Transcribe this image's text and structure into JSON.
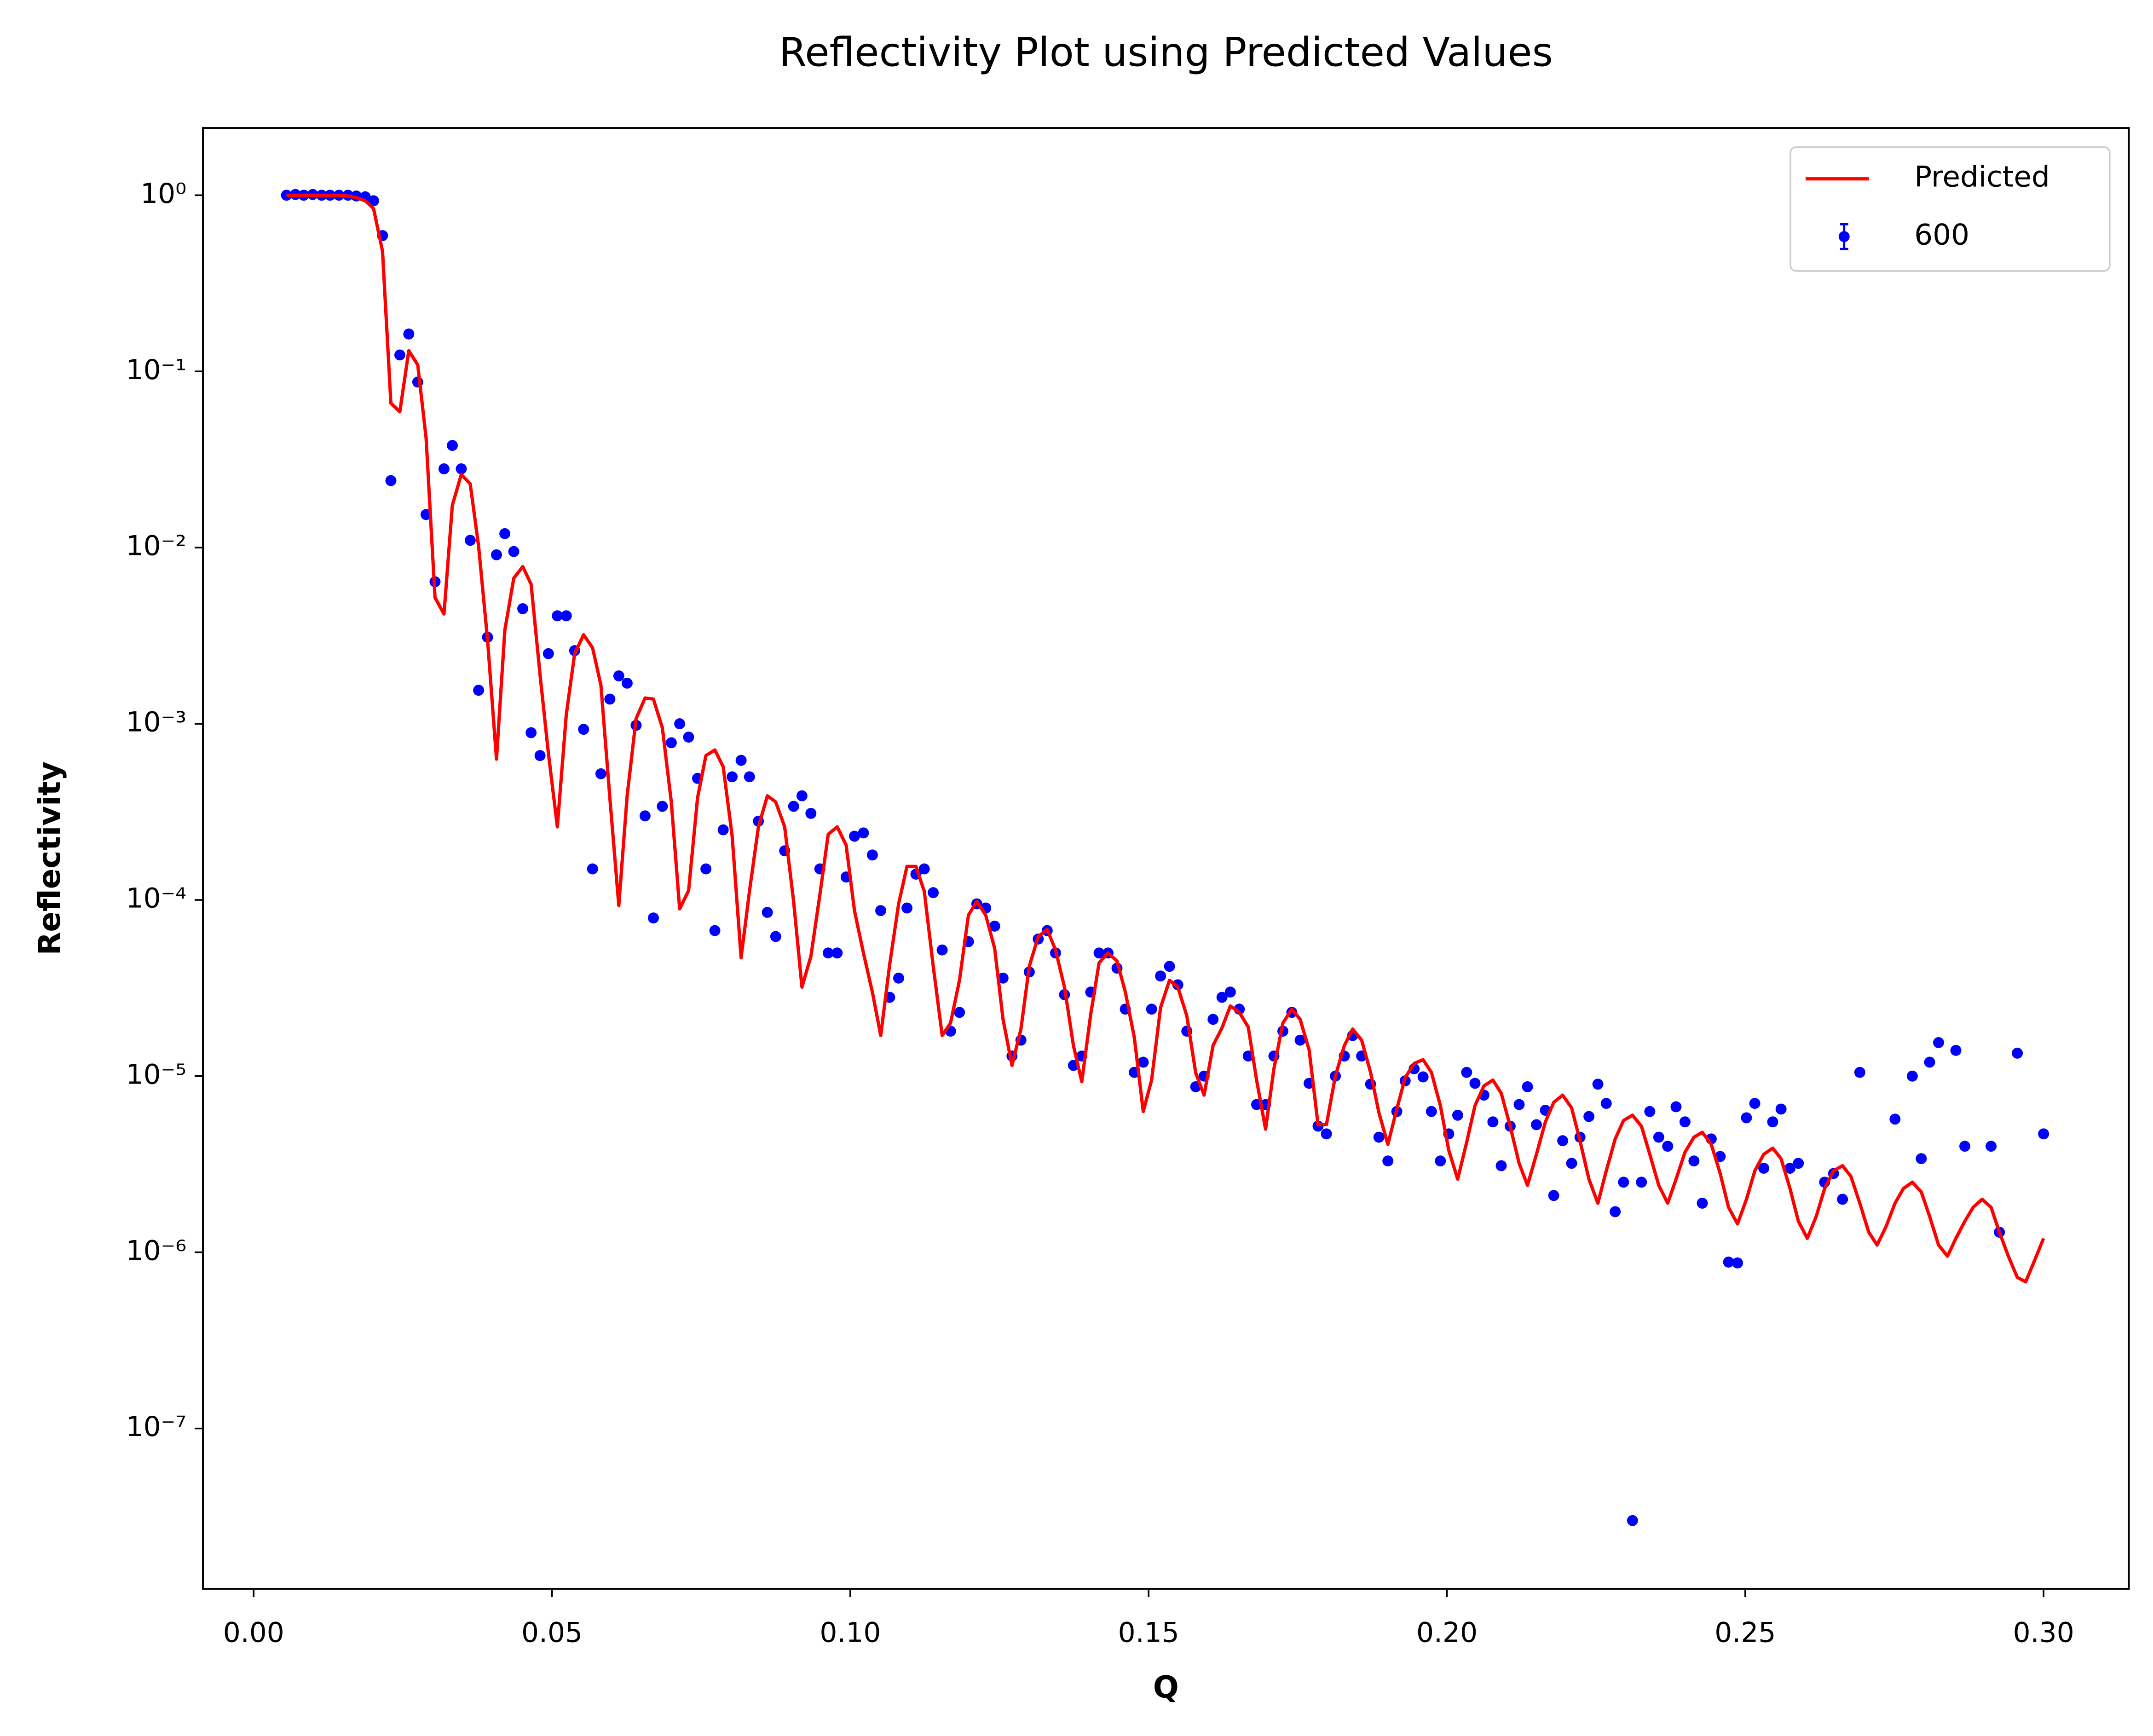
{
  "chart_data": {
    "type": "line-scatter",
    "title": "Reflectivity Plot using Predicted Values",
    "x_label": "Q",
    "y_label": "Reflectivity",
    "y_log": true,
    "legend": "upper right",
    "xlim": [
      -0.0085,
      0.3143
    ],
    "ylim": [
      1.23e-08,
      2.41
    ],
    "xticks": [
      {
        "value": 0,
        "label": "0.00"
      },
      0.05,
      {
        "value": 0.1,
        "label": "0.10"
      },
      0.15,
      {
        "value": 0.2,
        "label": "0.20"
      },
      0.25,
      {
        "value": 0.3,
        "label": "0.30"
      }
    ],
    "yticks": [
      {
        "value": 1,
        "label": "10⁰"
      },
      {
        "value": 0.1,
        "label": "10⁻¹"
      },
      {
        "value": 0.01,
        "label": "10⁻²"
      },
      {
        "value": 0.001,
        "label": "10⁻³"
      },
      {
        "value": 0.0001,
        "label": "10⁻⁴"
      },
      {
        "value": 1e-05,
        "label": "10⁻⁵"
      },
      {
        "value": 1e-06,
        "label": "10⁻⁶"
      },
      {
        "value": 1e-07,
        "label": "10⁻⁷"
      }
    ],
    "x": [
      0.0055,
      0.007,
      0.0084,
      0.0099,
      0.0114,
      0.0128,
      0.0143,
      0.0158,
      0.0172,
      0.0187,
      0.0201,
      0.0216,
      0.023,
      0.0245,
      0.026,
      0.0275,
      0.0289,
      0.0304,
      0.0319,
      0.0333,
      0.0348,
      0.0363,
      0.0377,
      0.0392,
      0.0407,
      0.0421,
      0.0436,
      0.0451,
      0.0465,
      0.048,
      0.0494,
      0.0509,
      0.0524,
      0.0538,
      0.0553,
      0.0568,
      0.0582,
      0.0597,
      0.0612,
      0.0626,
      0.0641,
      0.0656,
      0.067,
      0.0685,
      0.07,
      0.0714,
      0.0729,
      0.0744,
      0.0758,
      0.0773,
      0.0787,
      0.0802,
      0.0817,
      0.0831,
      0.0846,
      0.0861,
      0.0875,
      0.089,
      0.0905,
      0.0919,
      0.0934,
      0.0949,
      0.0963,
      0.0978,
      0.0993,
      0.1007,
      0.1022,
      0.1037,
      0.1051,
      0.1066,
      0.1081,
      0.1095,
      0.111,
      0.1124,
      0.1139,
      0.1154,
      0.1168,
      0.1183,
      0.1198,
      0.1212,
      0.1227,
      0.1242,
      0.1256,
      0.1271,
      0.1286,
      0.13,
      0.1315,
      0.133,
      0.1344,
      0.1359,
      0.1374,
      0.1388,
      0.1403,
      0.1417,
      0.1432,
      0.1447,
      0.1461,
      0.1476,
      0.1491,
      0.1505,
      0.152,
      0.1535,
      0.1549,
      0.1564,
      0.1579,
      0.1593,
      0.1608,
      0.1623,
      0.1637,
      0.1652,
      0.1667,
      0.1681,
      0.1696,
      0.171,
      0.1725,
      0.174,
      0.1754,
      0.1769,
      0.1784,
      0.1798,
      0.1813,
      0.1828,
      0.1842,
      0.1857,
      0.1872,
      0.1886,
      0.1901,
      0.1916,
      0.193,
      0.1945,
      0.196,
      0.1974,
      0.1989,
      0.2003,
      0.2018,
      0.2033,
      0.2047,
      0.2062,
      0.2077,
      0.2091,
      0.2106,
      0.2121,
      0.2135,
      0.215,
      0.2165,
      0.2179,
      0.2194,
      0.2209,
      0.2223,
      0.2238,
      0.2253,
      0.2267,
      0.2282,
      0.2296,
      0.2311,
      0.2326,
      0.234,
      0.2355,
      0.237,
      0.2384,
      0.2399,
      0.2414,
      0.2428,
      0.2443,
      0.2458,
      0.2472,
      0.2487,
      0.2502,
      0.2516,
      0.2531,
      0.2546,
      0.256,
      0.2575,
      0.2589,
      0.2604,
      0.2619,
      0.2633,
      0.2648,
      0.2663,
      0.2677,
      0.2692,
      0.2707,
      0.2721,
      0.2736,
      0.2751,
      0.2765,
      0.278,
      0.2795,
      0.2809,
      0.2824,
      0.2839,
      0.2853,
      0.2868,
      0.2882,
      0.2897,
      0.2912,
      0.2926,
      0.2941,
      0.2956,
      0.297,
      0.2985,
      0.3
    ],
    "series": [
      {
        "name": "Predicted",
        "color": "#ff0000",
        "mark": "line",
        "values": [
          1.0,
          1.0,
          1.0,
          1.0,
          1.0,
          1.0,
          1.0,
          0.99,
          0.97,
          0.93,
          0.84,
          0.48,
          0.066,
          0.059,
          0.131,
          0.109,
          0.042,
          0.0052,
          0.0042,
          0.0174,
          0.026,
          0.023,
          0.0102,
          0.003,
          0.00063,
          0.0034,
          0.0067,
          0.0078,
          0.0062,
          0.0019,
          0.00068,
          0.00026,
          0.00113,
          0.0025,
          0.0032,
          0.0027,
          0.00166,
          0.00038,
          9.3e-05,
          0.00039,
          0.00107,
          0.0014,
          0.00138,
          0.00095,
          0.00036,
          8.9e-05,
          0.000113,
          0.00038,
          0.00066,
          0.00071,
          0.00057,
          0.00023,
          4.7e-05,
          0.000112,
          0.00026,
          0.00039,
          0.00036,
          0.00026,
          9.8e-05,
          3.2e-05,
          4.8e-05,
          0.000107,
          0.000236,
          0.00026,
          0.000205,
          8.7e-05,
          5e-05,
          3e-05,
          1.7e-05,
          4.3e-05,
          9.5e-05,
          0.000155,
          0.000155,
          0.000112,
          4.2e-05,
          1.7e-05,
          2e-05,
          3.5e-05,
          8.2e-05,
          9.8e-05,
          8.2e-05,
          5.3e-05,
          2.1e-05,
          1.15e-05,
          1.85e-05,
          4.2e-05,
          6.2e-05,
          6.8e-05,
          5.2e-05,
          3.2e-05,
          1.49e-05,
          9.3e-06,
          2.25e-05,
          4.4e-05,
          5e-05,
          4.5e-05,
          3e-05,
          1.66e-05,
          6.3e-06,
          9.5e-06,
          2.45e-05,
          3.5e-05,
          3.2e-05,
          2.2e-05,
          1.04e-05,
          7.8e-06,
          1.49e-05,
          1.88e-05,
          2.5e-05,
          2.3e-05,
          1.9e-05,
          9.5e-06,
          5e-06,
          1.1e-05,
          2e-05,
          2.4e-05,
          2.1e-05,
          1.41e-05,
          5.3e-06,
          5.3e-06,
          1e-05,
          1.49e-05,
          1.85e-05,
          1.6e-05,
          1.05e-05,
          6.2e-06,
          4.1e-06,
          6.5e-06,
          9.8e-06,
          1.18e-05,
          1.24e-05,
          1.05e-05,
          6.8e-06,
          3.8e-06,
          2.6e-06,
          4.2e-06,
          6.8e-06,
          8.8e-06,
          9.5e-06,
          8e-06,
          5.2e-06,
          3.2e-06,
          2.4e-06,
          3.6e-06,
          5.5e-06,
          7.1e-06,
          7.8e-06,
          6.6e-06,
          4.3e-06,
          2.6e-06,
          1.9e-06,
          2.9e-06,
          4.4e-06,
          5.6e-06,
          6e-06,
          5.2e-06,
          3.6e-06,
          2.4e-06,
          1.9e-06,
          2.6e-06,
          3.7e-06,
          4.5e-06,
          4.8e-06,
          4.1e-06,
          2.8e-06,
          1.8e-06,
          1.45e-06,
          2e-06,
          2.9e-06,
          3.6e-06,
          3.9e-06,
          3.4e-06,
          2.3e-06,
          1.5e-06,
          1.2e-06,
          1.6e-06,
          2.3e-06,
          2.9e-06,
          3.1e-06,
          2.7e-06,
          1.9e-06,
          1.3e-06,
          1.1e-06,
          1.4e-06,
          1.9e-06,
          2.3e-06,
          2.5e-06,
          2.2e-06,
          1.6e-06,
          1.1e-06,
          9.5e-07,
          1.2e-06,
          1.5e-06,
          1.8e-06,
          2e-06,
          1.8e-06,
          1.3e-06,
          9.5e-07,
          7.2e-07,
          6.8e-07,
          9e-07,
          1.2e-06
        ]
      },
      {
        "name": "600",
        "color": "#0000ff",
        "mark": "scatter",
        "values": [
          1.0,
          1.01,
          1.0,
          1.01,
          1.0,
          1.0,
          1.0,
          1.0,
          0.99,
          0.98,
          0.93,
          0.59,
          0.024,
          0.124,
          0.163,
          0.087,
          0.0154,
          0.0064,
          0.028,
          0.038,
          0.028,
          0.011,
          0.00155,
          0.0031,
          0.0091,
          0.012,
          0.0095,
          0.0045,
          0.00089,
          0.00066,
          0.0025,
          0.0041,
          0.0041,
          0.0026,
          0.00093,
          0.00015,
          0.00052,
          0.00138,
          0.00187,
          0.0017,
          0.00098,
          0.0003,
          7.9e-05,
          0.00034,
          0.00078,
          0.001,
          0.00084,
          0.00049,
          0.00015,
          6.7e-05,
          0.00025,
          0.0005,
          0.00062,
          0.0005,
          0.00028,
          8.5e-05,
          6.2e-05,
          0.00019,
          0.00034,
          0.00039,
          0.00031,
          0.00015,
          5e-05,
          5e-05,
          0.000135,
          0.00023,
          0.00024,
          0.00018,
          8.7e-05,
          2.8e-05,
          3.6e-05,
          9e-05,
          0.00014,
          0.00015,
          0.00011,
          5.2e-05,
          1.8e-05,
          2.3e-05,
          5.8e-05,
          9.5e-05,
          9e-05,
          7.1e-05,
          3.6e-05,
          1.3e-05,
          1.6e-05,
          3.9e-05,
          6e-05,
          6.7e-05,
          5e-05,
          2.9e-05,
          1.15e-05,
          1.3e-05,
          3e-05,
          5e-05,
          5e-05,
          4.1e-05,
          2.4e-05,
          1.05e-05,
          1.2e-05,
          2.4e-05,
          3.7e-05,
          4.2e-05,
          3.3e-05,
          1.8e-05,
          8.7e-06,
          1e-05,
          2.1e-05,
          2.8e-05,
          3e-05,
          2.4e-05,
          1.3e-05,
          6.9e-06,
          6.9e-06,
          1.3e-05,
          1.8e-05,
          2.3e-05,
          1.6e-05,
          9.1e-06,
          5.2e-06,
          4.7e-06,
          1e-05,
          1.3e-05,
          1.7e-05,
          1.3e-05,
          9e-06,
          4.5e-06,
          3.3e-06,
          6.3e-06,
          9.4e-06,
          1.1e-05,
          9.9e-06,
          6.3e-06,
          3.3e-06,
          4.7e-06,
          6e-06,
          1.05e-05,
          9.1e-06,
          7.8e-06,
          5.5e-06,
          3.1e-06,
          5.2e-06,
          6.9e-06,
          8.7e-06,
          5.3e-06,
          6.4e-06,
          2.1e-06,
          4.3e-06,
          3.2e-06,
          4.5e-06,
          5.9e-06,
          9e-06,
          7e-06,
          1.7e-06,
          2.5e-06,
          3e-08,
          2.5e-06,
          6.3e-06,
          4.5e-06,
          4e-06,
          6.7e-06,
          5.5e-06,
          3.3e-06,
          1.9e-06,
          4.4e-06,
          3.5e-06,
          8.8e-07,
          8.7e-07,
          5.8e-06,
          7e-06,
          3e-06,
          5.5e-06,
          6.5e-06,
          3e-06,
          3.2e-06,
          null,
          null,
          2.5e-06,
          2.8e-06,
          2e-06,
          null,
          1.05e-05,
          null,
          null,
          null,
          5.7e-06,
          null,
          1e-05,
          3.4e-06,
          1.2e-05,
          1.55e-05,
          null,
          1.4e-05,
          4e-06,
          null,
          null,
          4e-06,
          1.3e-06,
          null,
          1.35e-05,
          null,
          null,
          4.7e-06
        ]
      }
    ]
  }
}
